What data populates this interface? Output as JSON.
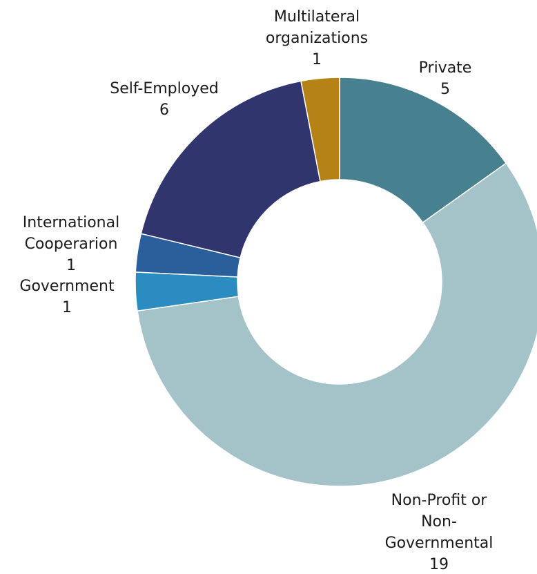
{
  "chart_data": {
    "type": "pie",
    "variant": "donut",
    "title": "",
    "slices": [
      {
        "label_lines": [
          "Private"
        ],
        "value": 5,
        "color": "#47818f"
      },
      {
        "label_lines": [
          "Non-Profit or",
          "Non-",
          "Governmental"
        ],
        "value": 19,
        "color": "#a4c3c8"
      },
      {
        "label_lines": [
          "Government"
        ],
        "value": 1,
        "color": "#2a8cbf"
      },
      {
        "label_lines": [
          "International",
          "Cooperarion"
        ],
        "value": 1,
        "color": "#2b5f9b"
      },
      {
        "label_lines": [
          "Self-Employed"
        ],
        "value": 6,
        "color": "#30356d"
      },
      {
        "label_lines": [
          "Multilateral",
          "organizations"
        ],
        "value": 1,
        "color": "#b58315"
      }
    ],
    "legend": "none",
    "data_labels": "outside, category and value"
  }
}
